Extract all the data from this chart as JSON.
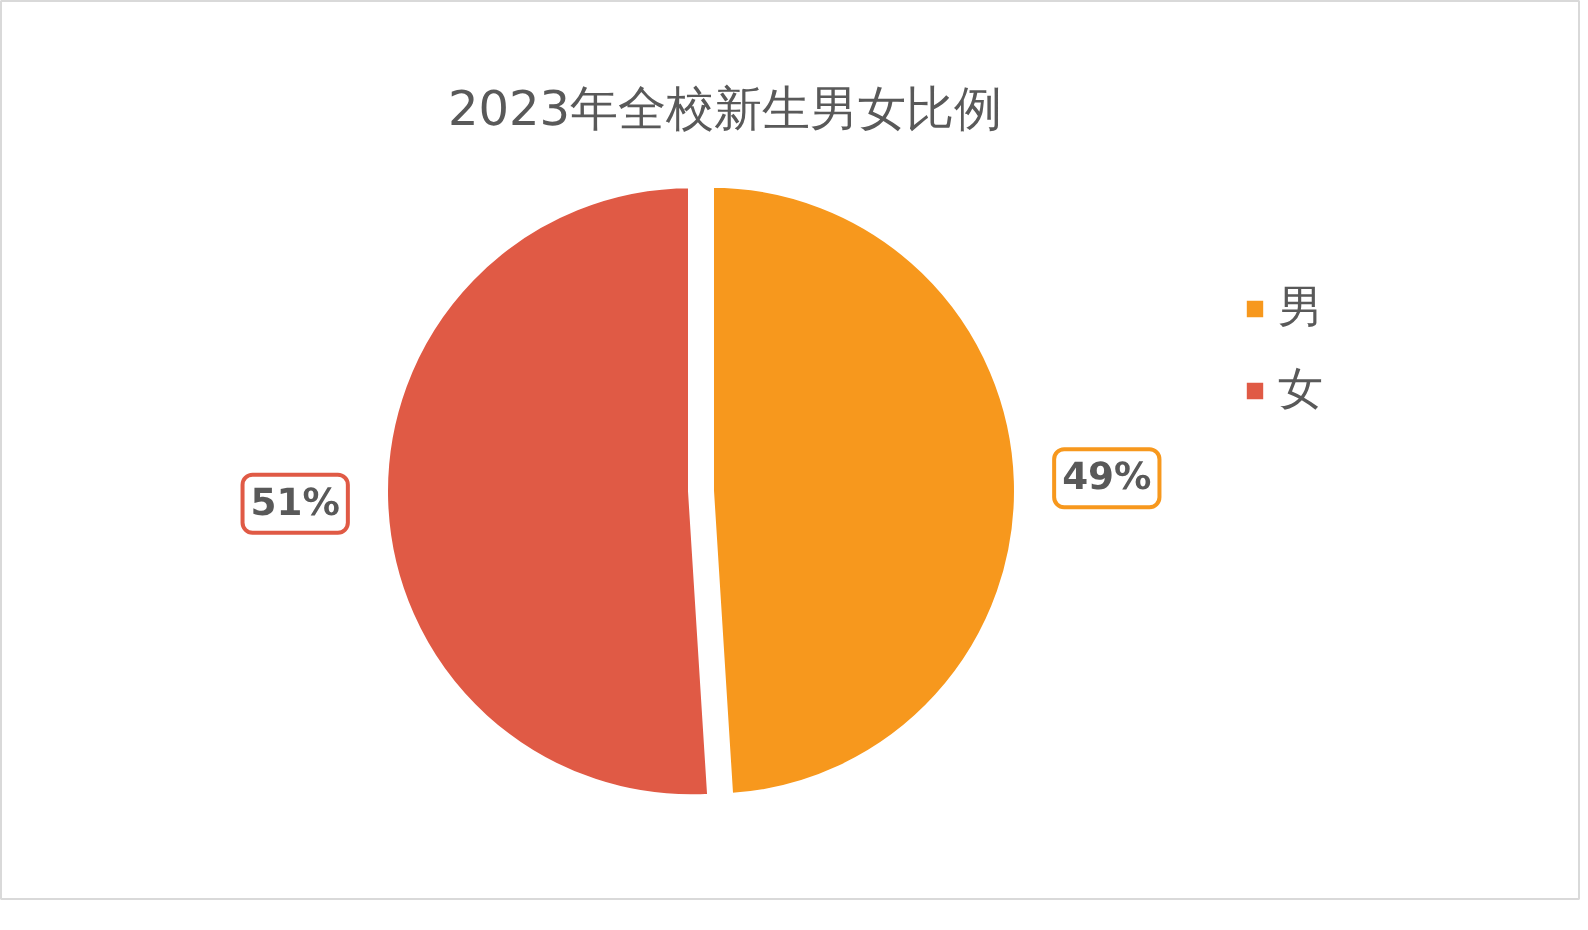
{
  "chart_data": {
    "type": "pie",
    "title": "2023年全校新生男女比例",
    "categories": [
      "男",
      "女"
    ],
    "values": [
      49,
      51
    ],
    "colors": [
      "#f7981d",
      "#e05a45"
    ],
    "value_labels": [
      "49%",
      "51%"
    ],
    "legend": "right"
  }
}
